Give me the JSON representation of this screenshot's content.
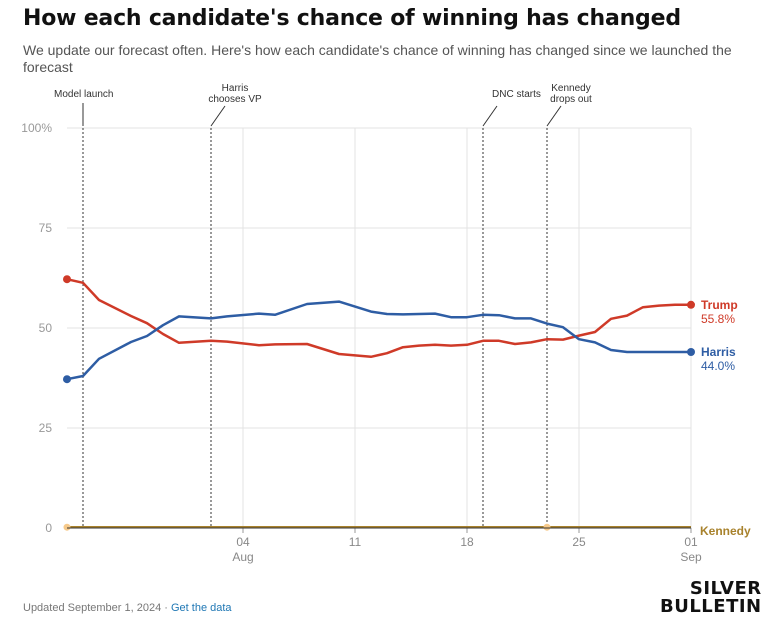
{
  "header": {
    "title": "How each candidate's chance of winning has changed",
    "subtitle": "We update our forecast often. Here's how each candidate's chance of winning has changed since we launched the forecast"
  },
  "chart_data": {
    "type": "line",
    "title": "How each candidate's chance of winning has changed",
    "xlabel": "",
    "ylabel": "",
    "ylim": [
      0,
      100
    ],
    "x_start": "2024-07-24",
    "x_end": "2024-09-01",
    "y_ticks": [
      "0",
      "25",
      "50",
      "75",
      "100%"
    ],
    "y_tick_values": [
      0,
      25,
      50,
      75,
      100
    ],
    "x_ticks": [
      {
        "date": "2024-08-04",
        "label": "04",
        "sublabel": "Aug"
      },
      {
        "date": "2024-08-11",
        "label": "11",
        "sublabel": ""
      },
      {
        "date": "2024-08-18",
        "label": "18",
        "sublabel": ""
      },
      {
        "date": "2024-08-25",
        "label": "25",
        "sublabel": ""
      },
      {
        "date": "2024-09-01",
        "label": "01",
        "sublabel": "Sep"
      }
    ],
    "grid": true,
    "series": [
      {
        "name": "Trump",
        "color": "#cf3a28",
        "final_label": "55.8%",
        "x": [
          "2024-07-24",
          "2024-07-25",
          "2024-07-26",
          "2024-07-28",
          "2024-07-29",
          "2024-07-30",
          "2024-07-31",
          "2024-08-02",
          "2024-08-03",
          "2024-08-05",
          "2024-08-06",
          "2024-08-08",
          "2024-08-10",
          "2024-08-12",
          "2024-08-13",
          "2024-08-14",
          "2024-08-15",
          "2024-08-16",
          "2024-08-17",
          "2024-08-18",
          "2024-08-19",
          "2024-08-20",
          "2024-08-21",
          "2024-08-22",
          "2024-08-23",
          "2024-08-24",
          "2024-08-25",
          "2024-08-26",
          "2024-08-27",
          "2024-08-28",
          "2024-08-29",
          "2024-08-30",
          "2024-08-31",
          "2024-09-01"
        ],
        "y": [
          62.2,
          61.3,
          57.0,
          53.0,
          51.2,
          48.5,
          46.3,
          46.8,
          46.6,
          45.7,
          45.9,
          46.0,
          43.5,
          42.8,
          43.7,
          45.2,
          45.6,
          45.8,
          45.6,
          45.8,
          46.8,
          46.8,
          46.0,
          46.4,
          47.2,
          47.1,
          48.1,
          49.0,
          52.3,
          53.1,
          55.2,
          55.6,
          55.8,
          55.8
        ]
      },
      {
        "name": "Harris",
        "color": "#2e5da4",
        "final_label": "44.0%",
        "x": [
          "2024-07-24",
          "2024-07-25",
          "2024-07-26",
          "2024-07-28",
          "2024-07-29",
          "2024-07-30",
          "2024-07-31",
          "2024-08-02",
          "2024-08-03",
          "2024-08-05",
          "2024-08-06",
          "2024-08-08",
          "2024-08-10",
          "2024-08-12",
          "2024-08-13",
          "2024-08-14",
          "2024-08-15",
          "2024-08-16",
          "2024-08-17",
          "2024-08-18",
          "2024-08-19",
          "2024-08-20",
          "2024-08-21",
          "2024-08-22",
          "2024-08-23",
          "2024-08-24",
          "2024-08-25",
          "2024-08-26",
          "2024-08-27",
          "2024-08-28",
          "2024-08-29",
          "2024-08-30",
          "2024-08-31",
          "2024-09-01"
        ],
        "y": [
          37.2,
          38.0,
          42.3,
          46.5,
          48.0,
          50.7,
          52.9,
          52.4,
          52.9,
          53.6,
          53.3,
          56.0,
          56.6,
          54.1,
          53.5,
          53.4,
          53.5,
          53.6,
          52.7,
          52.7,
          53.3,
          53.2,
          52.4,
          52.4,
          51.1,
          50.2,
          47.2,
          46.4,
          44.5,
          44.0,
          44.0,
          44.0,
          44.0,
          44.0
        ]
      },
      {
        "name": "Kennedy",
        "color": "#c89400",
        "final_label": "",
        "x": [
          "2024-07-24",
          "2024-08-23",
          "2024-09-01"
        ],
        "y": [
          0.2,
          0.2,
          0.0
        ]
      }
    ],
    "events": [
      {
        "date": "2024-07-25",
        "label_lines": [
          "Model launch"
        ]
      },
      {
        "date": "2024-08-02",
        "label_lines": [
          "Harris",
          "chooses VP"
        ]
      },
      {
        "date": "2024-08-19",
        "label_lines": [
          "DNC starts"
        ]
      },
      {
        "date": "2024-08-23",
        "label_lines": [
          "Kennedy",
          "drops out"
        ]
      }
    ]
  },
  "footer": {
    "updated": "Updated September 1, 2024",
    "separator": " · ",
    "link": "Get the data"
  },
  "brand": {
    "line1": "SILVER",
    "line2": "BULLETIN"
  }
}
